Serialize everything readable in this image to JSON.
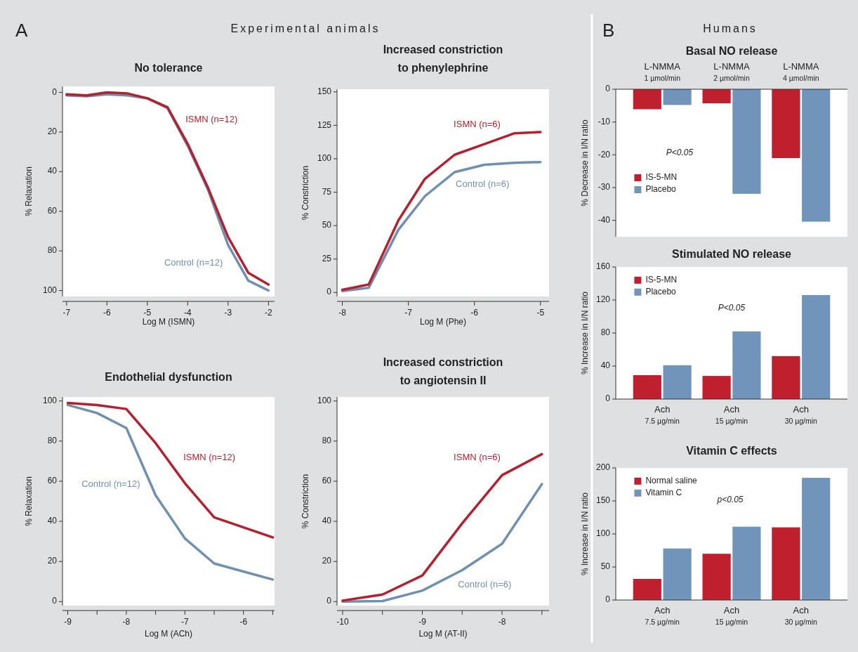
{
  "chart_data": [
    {
      "type": "line",
      "title": "No tolerance",
      "xlabel": "Log M (ISMN)",
      "ylabel": "% Relaxation",
      "annotations": [
        "A",
        "Experimental animals"
      ],
      "x": [
        -7,
        -6.5,
        -6,
        -5.5,
        -5,
        -4.5,
        -4,
        -3.5,
        -3,
        -2.5,
        -2
      ],
      "xlim": [
        -7.1,
        -1.85
      ],
      "xticks": [
        -7,
        -6,
        -5,
        -4,
        -3,
        -2
      ],
      "ylim": [
        103,
        -3
      ],
      "yticks": [
        0,
        20,
        40,
        60,
        80,
        100
      ],
      "series": [
        {
          "name": "Control (n=12)",
          "color": "#6f8fb3",
          "values": [
            1.5,
            2,
            1,
            1.5,
            3,
            8,
            27,
            49,
            77,
            95,
            100
          ]
        },
        {
          "name": "ISMN (n=12)",
          "color": "#b5202e",
          "values": [
            1,
            1.5,
            0,
            0.5,
            3,
            7.5,
            26,
            48,
            73,
            91,
            97
          ]
        }
      ]
    },
    {
      "type": "line",
      "title": "Increased constriction\nto phenylephrine",
      "xlabel": "Log M (Phe)",
      "ylabel": "% Constriction",
      "x": [
        -8,
        -7.6,
        -7.15,
        -6.75,
        -6.3,
        -5.85,
        -5.4,
        -5
      ],
      "xlim": [
        -8.08,
        -4.87
      ],
      "xticks": [
        -8,
        -7,
        -6,
        -5
      ],
      "ylim": [
        -3,
        152
      ],
      "yticks": [
        0,
        25,
        50,
        75,
        100,
        125,
        150
      ],
      "series": [
        {
          "name": "Control (n=6)",
          "color": "#6f8fb3",
          "values": [
            1,
            3.5,
            47,
            72,
            90,
            95.5,
            97,
            97.5
          ]
        },
        {
          "name": "ISMN (n=6)",
          "color": "#b5202e",
          "values": [
            2,
            6,
            54,
            85,
            103,
            111,
            119,
            120
          ]
        }
      ]
    },
    {
      "type": "line",
      "title": "Endothelial dysfunction",
      "xlabel": "Log M (ACh)",
      "ylabel": "% Relaxation",
      "x": [
        -9,
        -8.5,
        -8,
        -7.5,
        -7,
        -6.5,
        -6,
        -5.5
      ],
      "xlim": [
        -9.09,
        -5.47
      ],
      "xticks": [
        -9,
        {
          "value": -8.5,
          "label": null
        },
        -8,
        {
          "value": -7.5,
          "label": null
        },
        -7,
        {
          "value": -6.5,
          "label": null
        },
        -6,
        {
          "value": -5.5,
          "label": null
        }
      ],
      "ylim": [
        -2,
        102
      ],
      "yticks": [
        0,
        20,
        40,
        60,
        80,
        100
      ],
      "series": [
        {
          "name": "Control (n=12)",
          "color": "#6f8fb3",
          "values": [
            98,
            94,
            86.5,
            53,
            31.5,
            19,
            15,
            11
          ]
        },
        {
          "name": "ISMN (n=12)",
          "color": "#b5202e",
          "values": [
            99,
            98,
            96,
            79,
            59,
            42,
            37,
            32
          ]
        }
      ]
    },
    {
      "type": "line",
      "title": "Increased constriction\nto angiotensin II",
      "xlabel": "Log M (AT-II)",
      "ylabel": "% Constriction",
      "x": [
        -10,
        -9.5,
        -9,
        -8.5,
        -8,
        -7.5
      ],
      "xlim": [
        -10.07,
        -7.41
      ],
      "xticks": [
        -10,
        {
          "value": -9.5,
          "label": null
        },
        -9,
        {
          "value": -8.5,
          "label": null
        },
        -8,
        {
          "value": -7.5,
          "label": null
        }
      ],
      "ylim": [
        -2,
        102
      ],
      "yticks": [
        0,
        20,
        40,
        60,
        80,
        100
      ],
      "series": [
        {
          "name": "Control (n=6)",
          "color": "#6f8fb3",
          "values": [
            0,
            0.3,
            5.5,
            15.7,
            28.8,
            58.6
          ]
        },
        {
          "name": "ISMN (n=6)",
          "color": "#b5202e",
          "values": [
            0.5,
            3.5,
            13,
            39,
            63,
            73.5
          ]
        }
      ]
    },
    {
      "type": "bar",
      "title": "Basal NO release",
      "ylabel": "% Decrease in I/N ratio",
      "annotations": [
        "B",
        "Humans",
        "P<0.05"
      ],
      "categories": [
        "L-NMMA\n1 µmol/min",
        "L-NMMA\n2 µmol/min",
        "L-NMMA\n4 µmol/min"
      ],
      "ylim": [
        -45,
        0
      ],
      "yticks": [
        0,
        -10,
        -20,
        -30,
        -40
      ],
      "legend": "left",
      "series": [
        {
          "name": "IS-5-MN",
          "color": "#c01f2e",
          "values": [
            -6.1,
            -4.3,
            -21
          ]
        },
        {
          "name": "Placebo",
          "color": "#7194ba",
          "values": [
            -4.8,
            -31.9,
            -40.4
          ]
        }
      ]
    },
    {
      "type": "bar",
      "title": "Stimulated NO release",
      "ylabel": "% Increase in I/N ratio",
      "annotations": [
        "P<0.05"
      ],
      "categories": [
        "Ach\n7.5 µg/min",
        "Ach\n15 µg/min",
        "Ach\n30 µg/min"
      ],
      "ylim": [
        0,
        160
      ],
      "yticks": [
        0,
        40,
        80,
        120,
        160
      ],
      "legend": "top left",
      "series": [
        {
          "name": "IS-5-MN",
          "color": "#c01f2e",
          "values": [
            29,
            28,
            52
          ]
        },
        {
          "name": "Placebo",
          "color": "#7194ba",
          "values": [
            41,
            82,
            126
          ]
        }
      ]
    },
    {
      "type": "bar",
      "title": "Vitamin C effects",
      "ylabel": "% Increase in I/N ratio",
      "annotations": [
        "p<0.05"
      ],
      "categories": [
        "Ach\n7.5 µg/min",
        "Ach\n15 µg/min",
        "Ach\n30 µg/min"
      ],
      "ylim": [
        0,
        200
      ],
      "yticks": [
        0,
        50,
        100,
        150,
        200
      ],
      "legend": "top left",
      "series": [
        {
          "name": "Normal saline",
          "color": "#c01f2e",
          "values": [
            32,
            70,
            110
          ]
        },
        {
          "name": "Vitamin C",
          "color": "#7194ba",
          "values": [
            78,
            111,
            185
          ]
        }
      ]
    }
  ]
}
